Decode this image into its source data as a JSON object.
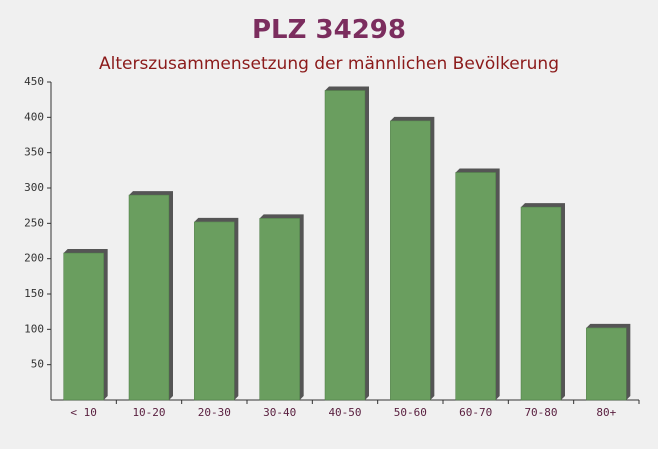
{
  "chart_data": {
    "type": "bar",
    "title": "PLZ 34298",
    "subtitle": "Alterszusammensetzung der männlichen Bevölkerung",
    "categories": [
      "< 10",
      "10-20",
      "20-30",
      "30-40",
      "40-50",
      "50-60",
      "60-70",
      "70-80",
      "80+"
    ],
    "values": [
      208,
      290,
      252,
      257,
      438,
      395,
      322,
      273,
      102
    ],
    "color": "#6a9e5f",
    "ylim": [
      0,
      450
    ],
    "yticks": [
      50,
      100,
      150,
      200,
      250,
      300,
      350,
      400,
      450
    ]
  }
}
